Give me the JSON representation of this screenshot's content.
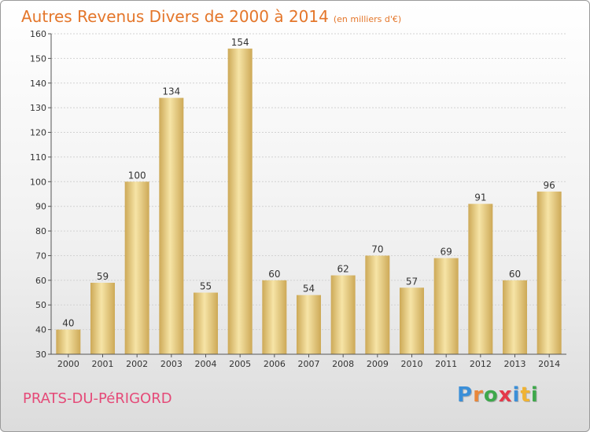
{
  "title": {
    "main": "Autres Revenus Divers de 2000 à 2014",
    "sub": "(en milliers d'€)"
  },
  "commune": "PRATS-DU-PéRIGORD",
  "logo": {
    "text": "Proxiti",
    "letters": [
      {
        "ch": "P",
        "color": "#3b8fd8"
      },
      {
        "ch": "r",
        "color": "#e9873a"
      },
      {
        "ch": "o",
        "color": "#3ea84b"
      },
      {
        "ch": "x",
        "color": "#e4394a"
      },
      {
        "ch": "i",
        "color": "#3b8fd8"
      },
      {
        "ch": "t",
        "color": "#f0b332"
      },
      {
        "ch": "i",
        "color": "#3ea84b"
      }
    ]
  },
  "colors": {
    "title": "#e4762a",
    "commune": "#e54a78",
    "bar_light": "#f6e4a6",
    "bar_dark": "#cda957"
  },
  "chart_data": {
    "type": "bar",
    "categories": [
      "2000",
      "2001",
      "2002",
      "2003",
      "2004",
      "2005",
      "2006",
      "2007",
      "2008",
      "2009",
      "2010",
      "2011",
      "2012",
      "2013",
      "2014"
    ],
    "values": [
      40,
      59,
      100,
      134,
      55,
      154,
      60,
      54,
      62,
      70,
      57,
      69,
      91,
      60,
      96
    ],
    "ylim": [
      30,
      160
    ],
    "yticks": [
      30,
      40,
      50,
      60,
      70,
      80,
      90,
      100,
      110,
      120,
      130,
      140,
      150,
      160
    ],
    "grid": true,
    "data_labels": true
  }
}
